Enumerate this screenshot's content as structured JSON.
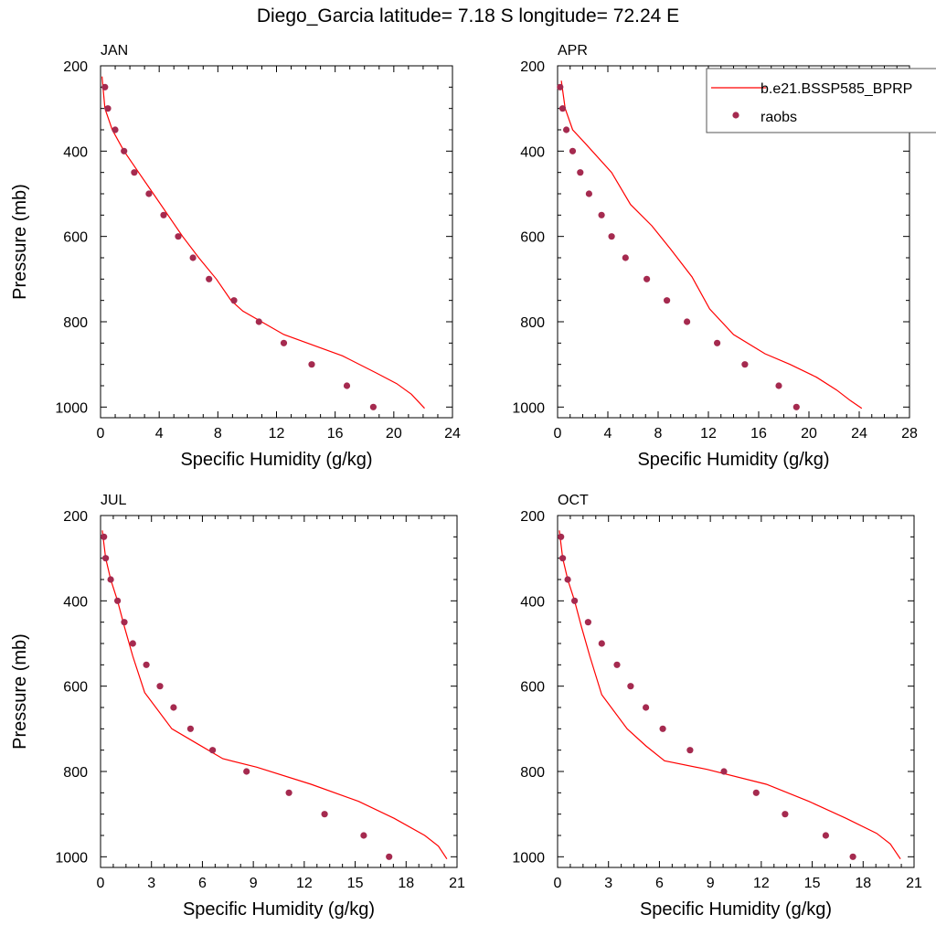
{
  "figure": {
    "title": "Diego_Garcia  latitude= 7.18 S longitude= 72.24 E"
  },
  "legend": {
    "model_label": "b.e21.BSSP585_BPRP",
    "obs_label": "raobs",
    "model_color": "#ff0000",
    "obs_color": "#a52a4f",
    "placement": "top-right of APR panel"
  },
  "chart_data": [
    {
      "type": "line",
      "panel": "JAN",
      "title": "JAN",
      "xlabel": "Specific Humidity (g/kg)",
      "ylabel": "Pressure (mb)",
      "xlim": [
        0,
        24
      ],
      "ylim": [
        200,
        1025
      ],
      "y_inverted": true,
      "xticks": [
        0,
        4,
        8,
        12,
        16,
        20,
        24
      ],
      "yticks": [
        200,
        400,
        600,
        800,
        1000
      ],
      "series": [
        {
          "name": "b.e21.BSSP585_BPRP",
          "style": "line",
          "x": [
            0.1,
            0.3,
            0.8,
            1.6,
            2.6,
            3.6,
            4.6,
            5.6,
            6.7,
            7.9,
            8.9,
            9.7,
            12.5,
            16.5,
            18.8,
            20.2,
            21.2,
            22.1
          ],
          "y": [
            225,
            300,
            350,
            400,
            450,
            500,
            550,
            600,
            650,
            700,
            750,
            775,
            830,
            880,
            920,
            945,
            970,
            1003
          ]
        },
        {
          "name": "raobs",
          "style": "markers",
          "x": [
            0.3,
            0.5,
            1.0,
            1.6,
            2.3,
            3.3,
            4.3,
            5.3,
            6.3,
            7.4,
            9.1,
            10.8,
            12.5,
            14.4,
            16.8,
            18.6
          ],
          "y": [
            250,
            300,
            350,
            400,
            450,
            500,
            550,
            600,
            650,
            700,
            750,
            800,
            850,
            900,
            950,
            1000
          ]
        }
      ]
    },
    {
      "type": "line",
      "panel": "APR",
      "title": "APR",
      "xlabel": "Specific Humidity (g/kg)",
      "ylabel": "",
      "xlim": [
        0,
        28
      ],
      "ylim": [
        200,
        1025
      ],
      "y_inverted": true,
      "xticks": [
        0,
        4,
        8,
        12,
        16,
        20,
        24,
        28
      ],
      "yticks": [
        200,
        400,
        600,
        800,
        1000
      ],
      "series": [
        {
          "name": "b.e21.BSSP585_BPRP",
          "style": "line",
          "x": [
            0.3,
            0.6,
            1.2,
            2.3,
            4.3,
            5.8,
            7.5,
            9.0,
            10.7,
            12.1,
            14.0,
            16.5,
            18.5,
            20.6,
            22.2,
            23.3,
            24.2
          ],
          "y": [
            235,
            300,
            350,
            385,
            450,
            525,
            575,
            630,
            695,
            770,
            830,
            875,
            900,
            930,
            960,
            985,
            1003
          ]
        },
        {
          "name": "raobs",
          "style": "markers",
          "x": [
            0.2,
            0.4,
            0.7,
            1.2,
            1.8,
            2.5,
            3.5,
            4.3,
            5.4,
            7.1,
            8.7,
            10.3,
            12.7,
            14.9,
            17.6,
            19.0
          ],
          "y": [
            250,
            300,
            350,
            400,
            450,
            500,
            550,
            600,
            650,
            700,
            750,
            800,
            850,
            900,
            950,
            1000
          ]
        }
      ]
    },
    {
      "type": "line",
      "panel": "JUL",
      "title": "JUL",
      "xlabel": "Specific Humidity (g/kg)",
      "ylabel": "Pressure (mb)",
      "xlim": [
        0,
        21
      ],
      "ylim": [
        200,
        1025
      ],
      "y_inverted": true,
      "xticks": [
        0,
        3,
        6,
        9,
        12,
        15,
        18,
        21
      ],
      "yticks": [
        200,
        400,
        600,
        800,
        1000
      ],
      "series": [
        {
          "name": "b.e21.BSSP585_BPRP",
          "style": "line",
          "x": [
            0.1,
            0.3,
            0.6,
            1.0,
            1.4,
            1.9,
            2.6,
            4.2,
            5.7,
            7.2,
            9.2,
            12.4,
            15.2,
            17.3,
            19.1,
            19.9,
            20.4
          ],
          "y": [
            235,
            300,
            350,
            400,
            460,
            530,
            615,
            700,
            735,
            770,
            790,
            830,
            870,
            910,
            950,
            975,
            1005
          ]
        },
        {
          "name": "raobs",
          "style": "markers",
          "x": [
            0.2,
            0.3,
            0.6,
            1.0,
            1.4,
            1.9,
            2.7,
            3.5,
            4.3,
            5.3,
            6.6,
            8.6,
            11.1,
            13.2,
            15.5,
            17.0
          ],
          "y": [
            250,
            300,
            350,
            400,
            450,
            500,
            550,
            600,
            650,
            700,
            750,
            800,
            850,
            900,
            950,
            1000
          ]
        }
      ]
    },
    {
      "type": "line",
      "panel": "OCT",
      "title": "OCT",
      "xlabel": "Specific Humidity (g/kg)",
      "ylabel": "",
      "xlim": [
        0,
        21
      ],
      "ylim": [
        200,
        1025
      ],
      "y_inverted": true,
      "xticks": [
        0,
        3,
        6,
        9,
        12,
        15,
        18,
        21
      ],
      "yticks": [
        200,
        400,
        600,
        800,
        1000
      ],
      "series": [
        {
          "name": "b.e21.BSSP585_BPRP",
          "style": "line",
          "x": [
            0.1,
            0.3,
            0.6,
            1.0,
            1.4,
            1.9,
            2.6,
            4.1,
            5.2,
            6.3,
            8.8,
            12.3,
            14.8,
            17.0,
            18.8,
            19.6,
            20.2
          ],
          "y": [
            235,
            300,
            350,
            400,
            460,
            530,
            620,
            700,
            740,
            775,
            795,
            830,
            870,
            910,
            945,
            970,
            1005
          ]
        },
        {
          "name": "raobs",
          "style": "markers",
          "x": [
            0.2,
            0.3,
            0.6,
            1.0,
            1.8,
            2.6,
            3.5,
            4.3,
            5.2,
            6.2,
            7.8,
            9.8,
            11.7,
            13.4,
            15.8,
            17.4
          ],
          "y": [
            250,
            300,
            350,
            400,
            450,
            500,
            550,
            600,
            650,
            700,
            750,
            800,
            850,
            900,
            950,
            1000
          ]
        }
      ]
    }
  ]
}
